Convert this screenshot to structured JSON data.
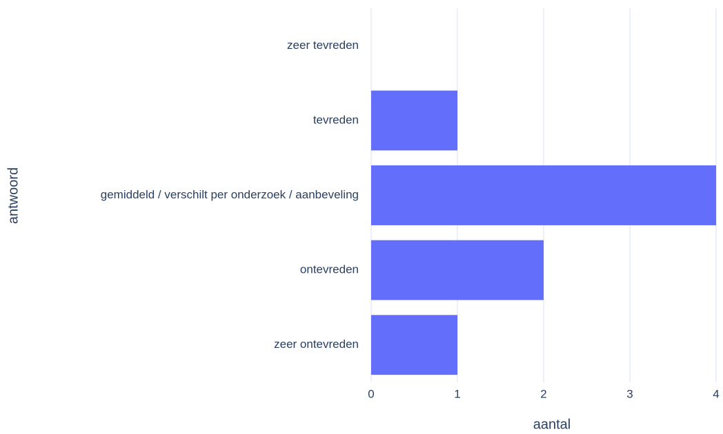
{
  "chart_data": {
    "type": "bar",
    "orientation": "horizontal",
    "categories": [
      "zeer tevreden",
      "tevreden",
      "gemiddeld / verschilt per onderzoek / aanbeveling",
      "ontevreden",
      "zeer ontevreden"
    ],
    "values": [
      0,
      1,
      4,
      2,
      1
    ],
    "color": "#636efa",
    "xlabel": "aantal",
    "ylabel": "antwoord",
    "xlim": [
      0,
      4
    ],
    "xticks": [
      0,
      1,
      2,
      3,
      4
    ],
    "grid": true
  }
}
